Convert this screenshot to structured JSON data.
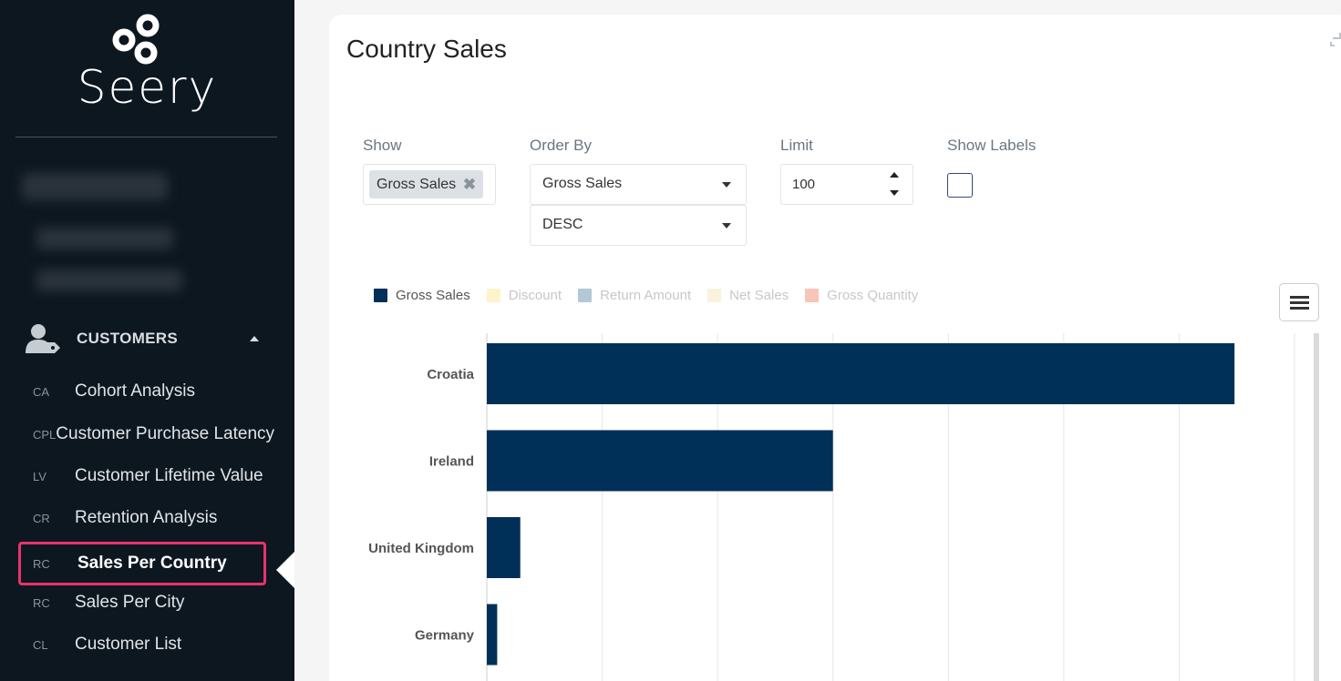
{
  "app": {
    "logo_text": "Seery"
  },
  "sidebar": {
    "section": {
      "icon": "customers-icon",
      "label": "CUSTOMERS"
    },
    "items": [
      {
        "abbr": "CA",
        "label": "Cohort Analysis",
        "active": false
      },
      {
        "abbr": "CPL",
        "label": "Customer Purchase Latency",
        "active": false
      },
      {
        "abbr": "LV",
        "label": "Customer Lifetime Value",
        "active": false
      },
      {
        "abbr": "CR",
        "label": "Retention Analysis",
        "active": false
      },
      {
        "abbr": "RC",
        "label": "Sales Per Country",
        "active": true
      },
      {
        "abbr": "RC",
        "label": "Sales Per City",
        "active": false
      },
      {
        "abbr": "CL",
        "label": "Customer List",
        "active": false
      }
    ]
  },
  "page": {
    "title": "Country Sales"
  },
  "controls": {
    "show": {
      "label": "Show",
      "selected": [
        "Gross Sales"
      ]
    },
    "order_by": {
      "label": "Order By",
      "field": "Gross Sales",
      "direction": "DESC"
    },
    "limit": {
      "label": "Limit",
      "value": "100"
    },
    "show_labels": {
      "label": "Show Labels",
      "checked": false
    }
  },
  "colors": {
    "sidebar_bg": "#0d1720",
    "active_outline": "#e8326c",
    "bar": "#003057"
  },
  "chart_data": {
    "type": "bar",
    "orientation": "horizontal",
    "categories": [
      "Croatia",
      "Ireland",
      "United Kingdom",
      "Germany"
    ],
    "series": [
      {
        "name": "Gross Sales",
        "values": [
          6.48,
          3.0,
          0.29,
          0.09
        ]
      }
    ],
    "legend": [
      {
        "name": "Gross Sales",
        "color": "#003057",
        "active": true
      },
      {
        "name": "Discount",
        "color": "#fff3cc",
        "active": false
      },
      {
        "name": "Return Amount",
        "color": "#b3c8d6",
        "active": false
      },
      {
        "name": "Net Sales",
        "color": "#f9f3de",
        "active": false
      },
      {
        "name": "Gross Quantity",
        "color": "#f9c5b8",
        "active": false
      }
    ],
    "xlim": [
      0,
      7
    ],
    "grid": true,
    "legend_position": "top-left"
  }
}
